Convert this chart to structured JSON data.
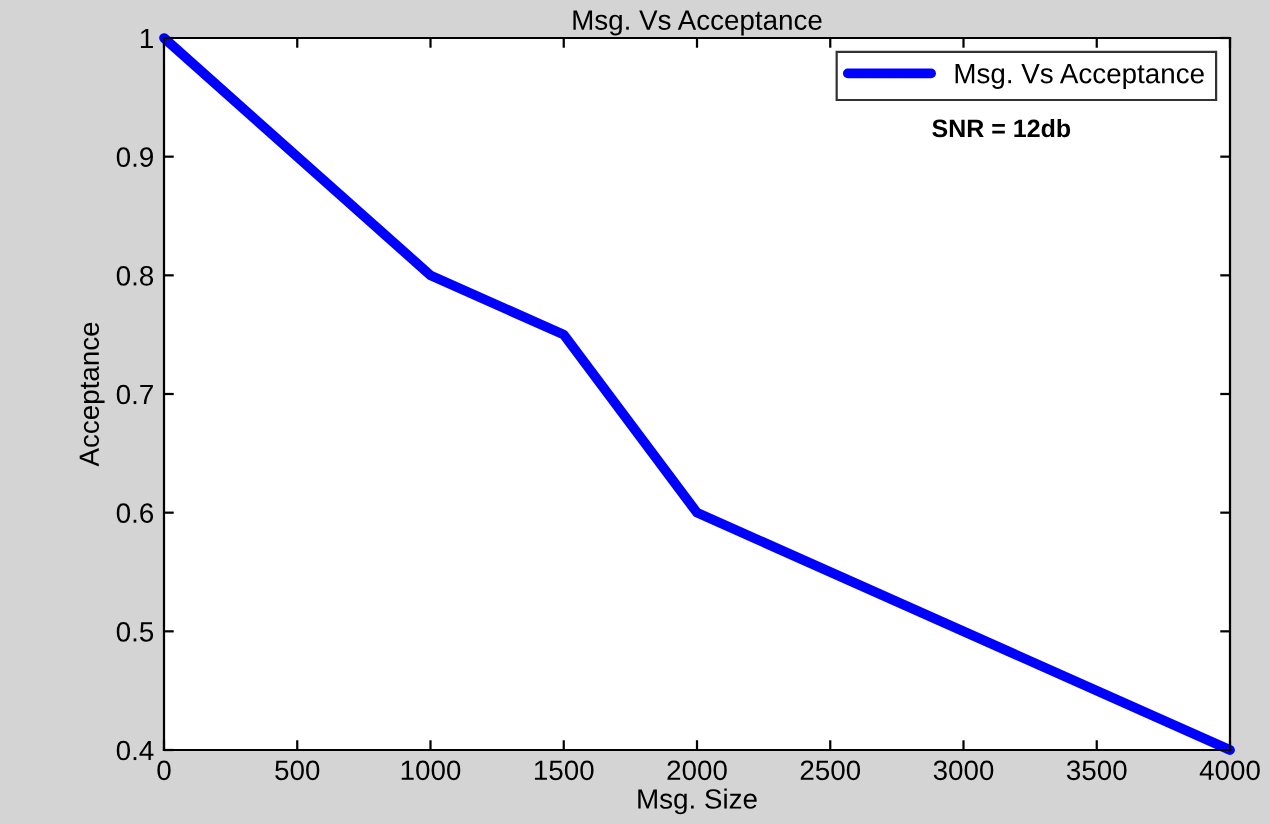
{
  "chart_data": {
    "type": "line",
    "title": "Msg. Vs Acceptance",
    "xlabel": "Msg. Size",
    "ylabel": "Acceptance",
    "x": [
      0,
      1000,
      1500,
      2000,
      4000
    ],
    "series": [
      {
        "name": "Msg. Vs Acceptance",
        "color": "#0000ff",
        "values": [
          1,
          0.8,
          0.75,
          0.6,
          0.4
        ]
      }
    ],
    "xlim": [
      0,
      4000
    ],
    "xticks": [
      0,
      500,
      1000,
      1500,
      2000,
      2500,
      3000,
      3500,
      4000
    ],
    "ylim": [
      0.4,
      1
    ],
    "yticks": [
      0.4,
      0.5,
      0.6,
      0.7,
      0.8,
      0.9,
      1
    ],
    "annotations": [
      "SNR = 12db"
    ],
    "legend": "top right",
    "grid": false,
    "marker": "none",
    "line_style": "solid"
  }
}
